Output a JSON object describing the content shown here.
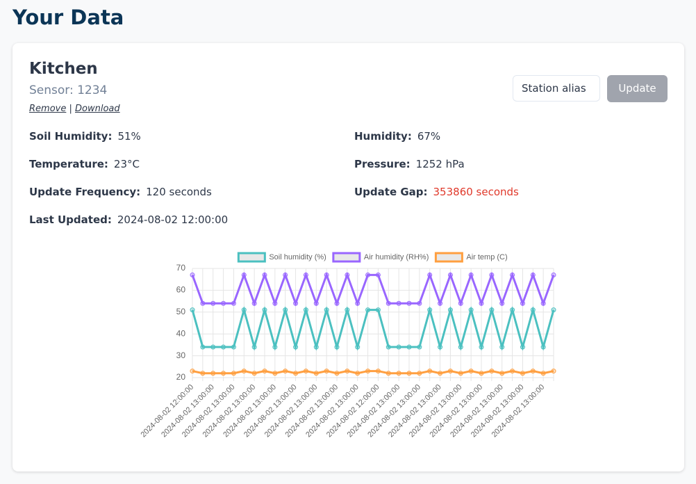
{
  "header": {
    "title": "Your Data"
  },
  "card": {
    "title": "Kitchen",
    "subtitle": "Sensor: 1234",
    "links": [
      "Remove",
      "Download"
    ],
    "input_placeholder": "Station alias",
    "button": "Update",
    "fields": [
      {
        "label": "Soil Humidity:",
        "value": "51%"
      },
      {
        "label": "Humidity:",
        "value": "67%"
      },
      {
        "label": "Temperature:",
        "value": "23°C"
      },
      {
        "label": "Pressure:",
        "value": "1252 hPa"
      },
      {
        "label": "Update Frequency:",
        "value": "120 seconds"
      },
      {
        "label": "Update Gap:",
        "value": "353860 seconds",
        "value_color": "#e0392b"
      },
      {
        "label": "Last Updated:",
        "value": "2024-08-02 12:00:00"
      }
    ]
  },
  "chart_data": {
    "type": "line",
    "categories": [
      "2024-08-02 12:00:00",
      null,
      "2024-08-02 13:00:00",
      null,
      "2024-08-02 13:00:00",
      null,
      "2024-08-02 13:00:00",
      null,
      "2024-08-02 13:00:00",
      null,
      "2024-08-02 13:00:00",
      null,
      "2024-08-02 13:00:00",
      null,
      "2024-08-02 13:00:00",
      null,
      "2024-08-02 13:00:00",
      null,
      "2024-08-02 12:00:00",
      null,
      "2024-08-02 13:00:00",
      null,
      "2024-08-02 13:00:00",
      null,
      "2024-08-02 13:00:00",
      null,
      "2024-08-02 13:00:00",
      null,
      "2024-08-02 13:00:00",
      null,
      "2024-08-02 13:00:00",
      null,
      "2024-08-02 13:00:00",
      null,
      "2024-08-02 13:00:00",
      null
    ],
    "series": [
      {
        "name": "Soil humidity (%)",
        "color": "#4bc0c0",
        "values": [
          51,
          34,
          34,
          34,
          34,
          51,
          34,
          51,
          34,
          51,
          34,
          51,
          34,
          51,
          34,
          51,
          34,
          51,
          51,
          34,
          34,
          34,
          34,
          51,
          34,
          51,
          34,
          51,
          34,
          51,
          34,
          51,
          34,
          51,
          34,
          51
        ]
      },
      {
        "name": "Air humidity (RH%)",
        "color": "#9966ff",
        "values": [
          67,
          54,
          54,
          54,
          54,
          67,
          54,
          67,
          54,
          67,
          54,
          67,
          54,
          67,
          54,
          67,
          54,
          67,
          67,
          54,
          54,
          54,
          54,
          67,
          54,
          67,
          54,
          67,
          54,
          67,
          54,
          67,
          54,
          67,
          54,
          67
        ]
      },
      {
        "name": "Air temp (C)",
        "color": "#ff9f40",
        "values": [
          23,
          22,
          22,
          22,
          22,
          23,
          22,
          23,
          22,
          23,
          22,
          23,
          22,
          23,
          22,
          23,
          22,
          23,
          23,
          22,
          22,
          22,
          22,
          23,
          22,
          23,
          22,
          23,
          22,
          23,
          22,
          23,
          22,
          23,
          22,
          23
        ]
      }
    ],
    "ylim": [
      20,
      70
    ],
    "yticks": [
      20,
      30,
      40,
      50,
      60,
      70
    ],
    "grid": true,
    "legend": "top"
  }
}
